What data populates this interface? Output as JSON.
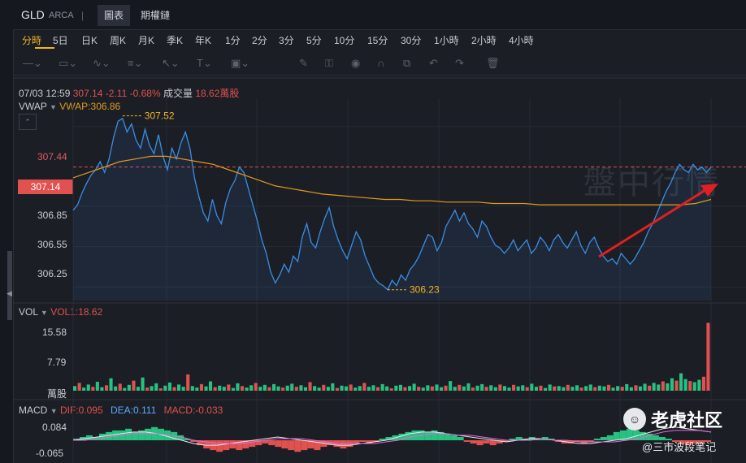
{
  "header": {
    "ticker": "GLD",
    "exchange": "ARCA",
    "separator": "|",
    "tabs": [
      {
        "label": "圖表"
      },
      {
        "label": "期權鏈"
      }
    ]
  },
  "periods": [
    "分時",
    "5日",
    "日K",
    "周K",
    "月K",
    "季K",
    "年K",
    "1分",
    "2分",
    "3分",
    "5分",
    "10分",
    "15分",
    "30分",
    "1小時",
    "2小時",
    "4小時"
  ],
  "active_period": "分時",
  "quote": {
    "datetime": "07/03 12:59",
    "price": "307.14",
    "change": "-2.11",
    "change_pct": "-0.68%",
    "volume_label": "成交量",
    "volume": "18.62萬股"
  },
  "vwap": {
    "label": "VWAP",
    "value_text": "VWAP:306.86"
  },
  "price_axis": [
    "307.44",
    "307.14",
    "306.85",
    "306.55",
    "306.25"
  ],
  "current_price_box": "307.14",
  "annotations": {
    "high": "307.52",
    "low": "306.23"
  },
  "volume_panel": {
    "label": "VOL",
    "value_text": "VOL1:18.62",
    "axis": [
      "15.58",
      "7.79",
      "萬股"
    ]
  },
  "macd_panel": {
    "label": "MACD",
    "dif": "DIF:0.095",
    "dea": "DEA:0.111",
    "macd": "MACD:-0.033",
    "axis": [
      "0.084",
      "-0.065"
    ]
  },
  "watermark": "盤中行情",
  "logo": {
    "text": "老虎社区",
    "credit": "@三市波段笔记"
  },
  "colors": {
    "up": "#26c281",
    "down": "#e0514f",
    "price_line": "#3a8ee6",
    "vwap_line": "#e39a1e",
    "accent": "#f0b429"
  },
  "chart_data": {
    "type": "line",
    "title": "",
    "series": [
      {
        "name": "",
        "values": [
          306.82,
          306.86,
          306.95,
          307.02,
          307.08,
          307.12,
          307.18,
          307.1,
          307.2,
          307.36,
          307.48,
          307.5,
          307.4,
          307.46,
          307.34,
          307.28,
          307.42,
          307.3,
          307.24,
          307.38,
          307.22,
          307.12,
          307.28,
          307.2,
          307.32,
          307.4,
          307.28,
          307.06,
          306.92,
          306.8,
          306.74,
          306.9,
          306.78,
          306.72,
          306.88,
          306.98,
          307.04,
          307.14,
          307.1,
          306.98,
          306.86,
          306.74,
          306.6,
          306.5,
          306.36,
          306.28,
          306.34,
          306.42,
          306.36,
          306.48,
          306.44,
          306.62,
          306.72,
          306.58,
          306.54,
          306.66,
          306.76,
          306.84,
          306.7,
          306.6,
          306.52,
          306.46,
          306.56,
          306.66,
          306.6,
          306.48,
          306.4,
          306.32,
          306.28,
          306.26,
          306.23,
          306.3,
          306.26,
          306.34,
          306.3,
          306.38,
          306.42,
          306.48,
          306.56,
          306.64,
          306.62,
          306.52,
          306.58,
          306.7,
          306.76,
          306.82,
          306.74,
          306.8,
          306.72,
          306.68,
          306.62,
          306.74,
          306.7,
          306.62,
          306.56,
          306.54,
          306.5,
          306.54,
          306.6,
          306.52,
          306.56,
          306.6,
          306.5,
          306.54,
          306.62,
          306.58,
          306.52,
          306.6,
          306.64,
          306.58,
          306.54,
          306.6,
          306.66,
          306.56,
          306.5,
          306.58,
          306.62,
          306.54,
          306.48,
          306.44,
          306.46,
          306.42,
          306.5,
          306.46,
          306.42,
          306.46,
          306.52,
          306.58,
          306.66,
          306.72,
          306.8,
          306.88,
          306.96,
          307.02,
          307.1,
          307.16,
          307.12,
          307.1,
          307.16,
          307.12,
          307.14,
          307.1,
          307.14
        ]
      },
      {
        "name": "VWAP",
        "values": [
          307.06,
          307.1,
          307.14,
          307.18,
          307.2,
          307.22,
          307.22,
          307.2,
          307.18,
          307.16,
          307.12,
          307.08,
          307.04,
          307.0,
          306.98,
          306.96,
          306.94,
          306.93,
          306.92,
          306.91,
          306.9,
          306.9,
          306.89,
          306.89,
          306.88,
          306.88,
          306.88,
          306.87,
          306.87,
          306.87,
          306.86,
          306.86,
          306.86,
          306.86,
          306.86,
          306.86,
          306.86,
          306.86,
          306.86,
          306.86,
          306.87,
          306.9
        ]
      }
    ],
    "ylim": [
      306.15,
      307.65
    ],
    "high": 307.52,
    "low": 306.23,
    "current": 307.14
  },
  "volume_data": {
    "ylim": [
      0,
      18.62
    ],
    "values": [
      1.2,
      2.0,
      0.8,
      1.6,
      1.0,
      2.3,
      0.9,
      1.4,
      3.2,
      1.1,
      1.8,
      0.7,
      1.5,
      2.6,
      1.0,
      3.4,
      0.8,
      1.2,
      1.9,
      0.6,
      1.3,
      2.1,
      0.9,
      1.6,
      1.0,
      4.2,
      1.2,
      0.8,
      1.7,
      1.1,
      2.4,
      0.9,
      1.3,
      1.0,
      1.6,
      0.7,
      1.9,
      1.2,
      0.8,
      1.4,
      2.0,
      1.0,
      1.5,
      0.9,
      1.7,
      1.1,
      0.8,
      1.3,
      1.8,
      1.0,
      1.4,
      0.9,
      2.2,
      1.2,
      0.8,
      1.5,
      1.0,
      1.9,
      0.7,
      1.3,
      1.1,
      1.6,
      0.8,
      1.2,
      2.0,
      1.0,
      1.4,
      0.9,
      1.7,
      1.1,
      0.6,
      1.3,
      1.5,
      0.9,
      1.2,
      1.8,
      1.0,
      0.8,
      1.4,
      1.1,
      1.6,
      0.9,
      1.3,
      2.5,
      1.0,
      1.5,
      1.1,
      1.9,
      0.8,
      1.3,
      1.7,
      1.0,
      1.4,
      0.9,
      1.6,
      1.2,
      0.8,
      1.5,
      1.1,
      1.4,
      0.9,
      1.8,
      1.0,
      1.3,
      0.7,
      1.6,
      1.1,
      1.2,
      0.9,
      1.5,
      1.0,
      1.4,
      0.8,
      1.2,
      1.6,
      0.9,
      1.3,
      1.1,
      1.5,
      0.8,
      1.2,
      1.0,
      1.7,
      0.9,
      1.4,
      1.1,
      1.8,
      1.3,
      2.0,
      1.6,
      2.4,
      1.9,
      3.2,
      2.6,
      4.5,
      3.0,
      2.5,
      2.2,
      2.8,
      3.6,
      17.5
    ],
    "directions": "mixed"
  },
  "macd_data": {
    "ylim": [
      -0.09,
      0.1
    ],
    "hist": [
      0.01,
      0.02,
      0.03,
      0.02,
      0.04,
      0.05,
      0.06,
      0.06,
      0.07,
      0.05,
      0.06,
      0.07,
      0.08,
      0.07,
      0.06,
      0.05,
      0.03,
      0.01,
      -0.01,
      -0.03,
      -0.05,
      -0.06,
      -0.07,
      -0.06,
      -0.05,
      -0.06,
      -0.05,
      -0.04,
      -0.03,
      -0.02,
      -0.03,
      -0.04,
      -0.05,
      -0.06,
      -0.07,
      -0.06,
      -0.05,
      -0.06,
      -0.04,
      -0.03,
      -0.04,
      -0.05,
      -0.04,
      -0.02,
      -0.01,
      -0.02,
      -0.01,
      0.01,
      0.02,
      0.03,
      0.04,
      0.05,
      0.06,
      0.06,
      0.05,
      0.06,
      0.05,
      0.04,
      0.03,
      0.02,
      -0.01,
      -0.02,
      -0.03,
      -0.02,
      -0.03,
      -0.02,
      -0.01,
      0.01,
      0.02,
      0.01,
      0.02,
      0.01,
      0.02,
      0.01,
      -0.01,
      -0.02,
      -0.02,
      -0.01,
      -0.02,
      -0.01,
      0.01,
      0.02,
      0.03,
      0.05,
      0.06,
      0.07,
      0.06,
      0.05,
      0.04,
      0.03,
      0.02,
      0.01,
      -0.01,
      -0.02,
      -0.03,
      -0.02,
      -0.02,
      -0.01
    ],
    "dif": [
      0.0,
      0.01,
      0.02,
      0.03,
      0.04,
      0.05,
      0.05,
      0.04,
      0.02,
      0.0,
      -0.02,
      -0.03,
      -0.03,
      -0.02,
      -0.01,
      0.0,
      0.01,
      0.02,
      0.01,
      0.0,
      -0.01,
      -0.02,
      -0.03,
      -0.03,
      -0.02,
      -0.01,
      0.0,
      0.02,
      0.04,
      0.05,
      0.05,
      0.04,
      0.03,
      0.02,
      0.01,
      0.0,
      -0.01,
      0.0,
      0.01,
      0.01,
      0.0,
      -0.01,
      -0.02,
      -0.02,
      -0.01,
      0.0,
      0.01,
      0.03,
      0.05,
      0.07,
      0.08,
      0.07,
      0.06,
      0.05
    ],
    "dea": [
      0.0,
      0.0,
      0.01,
      0.02,
      0.03,
      0.04,
      0.04,
      0.04,
      0.03,
      0.02,
      0.0,
      -0.01,
      -0.02,
      -0.02,
      -0.02,
      -0.01,
      0.0,
      0.01,
      0.01,
      0.01,
      0.0,
      -0.01,
      -0.02,
      -0.02,
      -0.02,
      -0.02,
      -0.01,
      0.0,
      0.02,
      0.03,
      0.04,
      0.04,
      0.03,
      0.03,
      0.02,
      0.01,
      0.0,
      0.0,
      0.0,
      0.01,
      0.0,
      0.0,
      -0.01,
      -0.01,
      -0.01,
      -0.01,
      0.0,
      0.01,
      0.03,
      0.05,
      0.06,
      0.06,
      0.06,
      0.05
    ]
  }
}
